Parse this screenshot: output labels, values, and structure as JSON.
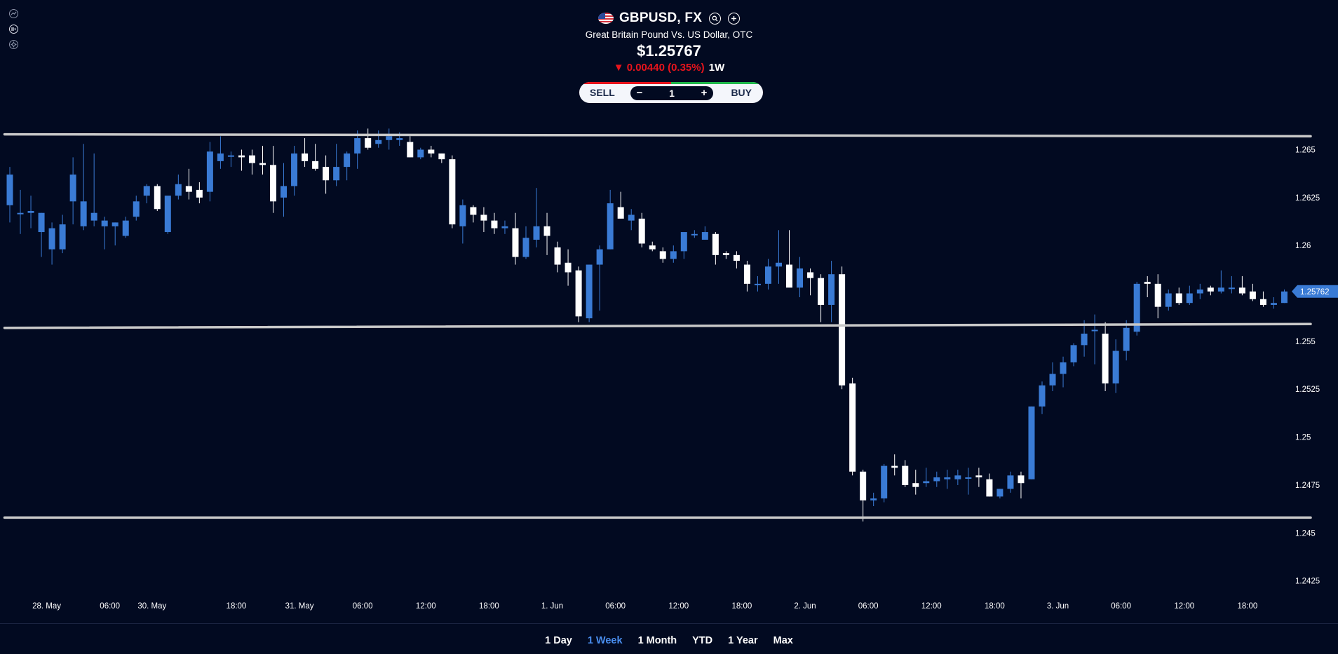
{
  "header": {
    "ticker": "GBPUSD, FX",
    "name": "Great Britain Pound Vs. US Dollar, OTC",
    "price": "$1.25767",
    "change": "▼ 0.00440 (0.35%)",
    "period": "1W"
  },
  "trade": {
    "sell_label": "SELL",
    "buy_label": "BUY",
    "quantity": "1",
    "minus": "−",
    "plus": "+"
  },
  "ranges": [
    {
      "label": "1 Day",
      "active": false
    },
    {
      "label": "1 Week",
      "active": true
    },
    {
      "label": "1 Month",
      "active": false
    },
    {
      "label": "YTD",
      "active": false
    },
    {
      "label": "1 Year",
      "active": false
    },
    {
      "label": "Max",
      "active": false
    }
  ],
  "colors": {
    "background": "#020a21",
    "up": "#3a7bd5",
    "down": "#ffffff",
    "accent": "#4a8ff0",
    "negative": "#e8141c",
    "trendline": "#c8c8c8"
  },
  "chart_data": {
    "type": "candlestick",
    "current_price_label": "1.25762",
    "ylim": [
      1.2415,
      1.2667
    ],
    "y_ticks": [
      {
        "value": 1.265,
        "label": "1.265"
      },
      {
        "value": 1.2625,
        "label": "1.2625"
      },
      {
        "value": 1.26,
        "label": "1.26"
      },
      {
        "value": 1.255,
        "label": "1.255"
      },
      {
        "value": 1.2525,
        "label": "1.2525"
      },
      {
        "value": 1.25,
        "label": "1.25"
      },
      {
        "value": 1.2475,
        "label": "1.2475"
      },
      {
        "value": 1.245,
        "label": "1.245"
      },
      {
        "value": 1.2425,
        "label": "1.2425"
      }
    ],
    "x_ticks": [
      {
        "index": 3.5,
        "label": "28. May"
      },
      {
        "index": 9.5,
        "label": "06:00"
      },
      {
        "index": 13.5,
        "label": "30. May"
      },
      {
        "index": 21.5,
        "label": "18:00"
      },
      {
        "index": 27.5,
        "label": "31. May"
      },
      {
        "index": 33.5,
        "label": "06:00"
      },
      {
        "index": 39.5,
        "label": "12:00"
      },
      {
        "index": 45.5,
        "label": "18:00"
      },
      {
        "index": 51.5,
        "label": "1. Jun"
      },
      {
        "index": 57.5,
        "label": "06:00"
      },
      {
        "index": 63.5,
        "label": "12:00"
      },
      {
        "index": 69.5,
        "label": "18:00"
      },
      {
        "index": 75.5,
        "label": "2. Jun"
      },
      {
        "index": 81.5,
        "label": "06:00"
      },
      {
        "index": 87.5,
        "label": "12:00"
      },
      {
        "index": 93.5,
        "label": "18:00"
      },
      {
        "index": 99.5,
        "label": "3. Jun"
      },
      {
        "index": 105.5,
        "label": "06:00"
      },
      {
        "index": 111.5,
        "label": "12:00"
      },
      {
        "index": 117.5,
        "label": "18:00"
      }
    ],
    "candles": [
      [
        1.2621,
        1.2641,
        1.2612,
        1.2637
      ],
      [
        1.2617,
        1.2629,
        1.2606,
        1.2617
      ],
      [
        1.2617,
        1.2626,
        1.2609,
        1.2618
      ],
      [
        1.2607,
        1.2617,
        1.2594,
        1.2617
      ],
      [
        1.2598,
        1.2612,
        1.259,
        1.2609
      ],
      [
        1.2598,
        1.2616,
        1.2596,
        1.2611
      ],
      [
        1.2623,
        1.2646,
        1.2611,
        1.2637
      ],
      [
        1.261,
        1.2653,
        1.2608,
        1.2623
      ],
      [
        1.2613,
        1.2648,
        1.261,
        1.2617
      ],
      [
        1.261,
        1.2615,
        1.2598,
        1.2613
      ],
      [
        1.261,
        1.2612,
        1.26,
        1.2612
      ],
      [
        1.2605,
        1.2615,
        1.2604,
        1.2613
      ],
      [
        1.2615,
        1.2626,
        1.2613,
        1.2623
      ],
      [
        1.2626,
        1.2632,
        1.2622,
        1.2631
      ],
      [
        1.2631,
        1.2632,
        1.2618,
        1.2619
      ],
      [
        1.2607,
        1.2625,
        1.2606,
        1.2626
      ],
      [
        1.2626,
        1.2637,
        1.2624,
        1.2632
      ],
      [
        1.2631,
        1.264,
        1.2624,
        1.2628
      ],
      [
        1.2629,
        1.2633,
        1.2622,
        1.2625
      ],
      [
        1.2628,
        1.2654,
        1.2623,
        1.2649
      ],
      [
        1.2644,
        1.2657,
        1.264,
        1.2648
      ],
      [
        1.2647,
        1.2649,
        1.2641,
        1.2647
      ],
      [
        1.2647,
        1.265,
        1.2639,
        1.2646
      ],
      [
        1.2647,
        1.265,
        1.2637,
        1.2643
      ],
      [
        1.2643,
        1.2652,
        1.2637,
        1.2642
      ],
      [
        1.2642,
        1.2652,
        1.2617,
        1.2623
      ],
      [
        1.2625,
        1.2643,
        1.2615,
        1.2631
      ],
      [
        1.2631,
        1.2652,
        1.2626,
        1.2648
      ],
      [
        1.2648,
        1.2656,
        1.2641,
        1.2644
      ],
      [
        1.2644,
        1.2653,
        1.2639,
        1.264
      ],
      [
        1.2641,
        1.2647,
        1.2627,
        1.2634
      ],
      [
        1.2634,
        1.2653,
        1.2631,
        1.2641
      ],
      [
        1.2641,
        1.2649,
        1.2634,
        1.2648
      ],
      [
        1.2648,
        1.266,
        1.264,
        1.2656
      ],
      [
        1.2656,
        1.2661,
        1.265,
        1.2651
      ],
      [
        1.2653,
        1.266,
        1.2651,
        1.2655
      ],
      [
        1.2655,
        1.2661,
        1.265,
        1.2657
      ],
      [
        1.2655,
        1.2659,
        1.2652,
        1.2656
      ],
      [
        1.2654,
        1.2657,
        1.2646,
        1.2646
      ],
      [
        1.2646,
        1.2651,
        1.2645,
        1.265
      ],
      [
        1.265,
        1.2652,
        1.2646,
        1.2648
      ],
      [
        1.2648,
        1.2648,
        1.2643,
        1.2645
      ],
      [
        1.2645,
        1.2647,
        1.2609,
        1.2611
      ],
      [
        1.261,
        1.2624,
        1.2601,
        1.2621
      ],
      [
        1.262,
        1.2621,
        1.2612,
        1.2616
      ],
      [
        1.2616,
        1.262,
        1.2607,
        1.2613
      ],
      [
        1.2613,
        1.2617,
        1.2606,
        1.2609
      ],
      [
        1.2609,
        1.2613,
        1.2606,
        1.261
      ],
      [
        1.2609,
        1.2617,
        1.259,
        1.2594
      ],
      [
        1.2594,
        1.261,
        1.2593,
        1.2604
      ],
      [
        1.2603,
        1.263,
        1.2599,
        1.261
      ],
      [
        1.261,
        1.2617,
        1.2595,
        1.2605
      ],
      [
        1.2599,
        1.2602,
        1.2586,
        1.259
      ],
      [
        1.2591,
        1.2598,
        1.2579,
        1.2586
      ],
      [
        1.2587,
        1.2589,
        1.256,
        1.2563
      ],
      [
        1.2562,
        1.259,
        1.256,
        1.259
      ],
      [
        1.259,
        1.26,
        1.2566,
        1.2598
      ],
      [
        1.2598,
        1.2629,
        1.2598,
        1.2622
      ],
      [
        1.262,
        1.2628,
        1.2614,
        1.2614
      ],
      [
        1.2613,
        1.2619,
        1.2608,
        1.2616
      ],
      [
        1.2614,
        1.2617,
        1.2599,
        1.2601
      ],
      [
        1.26,
        1.2602,
        1.2597,
        1.2598
      ],
      [
        1.2597,
        1.2599,
        1.2591,
        1.2593
      ],
      [
        1.2593,
        1.26,
        1.2591,
        1.2597
      ],
      [
        1.2597,
        1.2605,
        1.2593,
        1.2607
      ],
      [
        1.2606,
        1.2608,
        1.2604,
        1.2606
      ],
      [
        1.2603,
        1.261,
        1.2603,
        1.2607
      ],
      [
        1.2606,
        1.2607,
        1.259,
        1.2595
      ],
      [
        1.2596,
        1.2597,
        1.2593,
        1.2595
      ],
      [
        1.2595,
        1.2597,
        1.2588,
        1.2592
      ],
      [
        1.259,
        1.2592,
        1.2576,
        1.258
      ],
      [
        1.258,
        1.2584,
        1.2576,
        1.258
      ],
      [
        1.258,
        1.2593,
        1.2577,
        1.2589
      ],
      [
        1.2589,
        1.2608,
        1.258,
        1.2591
      ],
      [
        1.259,
        1.2608,
        1.258,
        1.2578
      ],
      [
        1.2578,
        1.2594,
        1.2573,
        1.2588
      ],
      [
        1.2586,
        1.2588,
        1.2574,
        1.2583
      ],
      [
        1.2583,
        1.2585,
        1.256,
        1.2569
      ],
      [
        1.2569,
        1.2592,
        1.256,
        1.2585
      ],
      [
        1.2585,
        1.2589,
        1.2525,
        1.2527
      ],
      [
        1.2528,
        1.2531,
        1.248,
        1.2482
      ],
      [
        1.2482,
        1.2483,
        1.2456,
        1.2467
      ],
      [
        1.2467,
        1.2471,
        1.2464,
        1.2468
      ],
      [
        1.2468,
        1.2486,
        1.2466,
        1.2485
      ],
      [
        1.2485,
        1.2491,
        1.248,
        1.2484
      ],
      [
        1.2485,
        1.2488,
        1.2474,
        1.2475
      ],
      [
        1.2476,
        1.2483,
        1.247,
        1.2474
      ],
      [
        1.2476,
        1.2484,
        1.2474,
        1.2477
      ],
      [
        1.2477,
        1.2482,
        1.2474,
        1.2479
      ],
      [
        1.2478,
        1.2483,
        1.2473,
        1.2479
      ],
      [
        1.2478,
        1.2483,
        1.2475,
        1.248
      ],
      [
        1.2479,
        1.2484,
        1.247,
        1.2479
      ],
      [
        1.248,
        1.2484,
        1.2474,
        1.2479
      ],
      [
        1.2478,
        1.2481,
        1.2469,
        1.2469
      ],
      [
        1.2469,
        1.2473,
        1.2468,
        1.2473
      ],
      [
        1.2473,
        1.2482,
        1.2471,
        1.248
      ],
      [
        1.248,
        1.2482,
        1.2468,
        1.2476
      ],
      [
        1.2478,
        1.2516,
        1.2478,
        1.2516
      ],
      [
        1.2516,
        1.2529,
        1.2512,
        1.2527
      ],
      [
        1.2527,
        1.2539,
        1.2524,
        1.2533
      ],
      [
        1.2533,
        1.2542,
        1.2526,
        1.2539
      ],
      [
        1.2539,
        1.2549,
        1.2537,
        1.2548
      ],
      [
        1.2548,
        1.2561,
        1.2542,
        1.2554
      ],
      [
        1.2556,
        1.2564,
        1.2538,
        1.2556
      ],
      [
        1.2554,
        1.256,
        1.2524,
        1.2528
      ],
      [
        1.2528,
        1.2551,
        1.2523,
        1.2545
      ],
      [
        1.2545,
        1.2561,
        1.254,
        1.2557
      ],
      [
        1.2555,
        1.2581,
        1.2553,
        1.258
      ],
      [
        1.2581,
        1.2584,
        1.2573,
        1.258
      ],
      [
        1.258,
        1.2585,
        1.2562,
        1.2568
      ],
      [
        1.2568,
        1.2577,
        1.2566,
        1.2575
      ],
      [
        1.2575,
        1.2578,
        1.2569,
        1.257
      ],
      [
        1.257,
        1.2579,
        1.2569,
        1.2575
      ],
      [
        1.2575,
        1.258,
        1.2572,
        1.2577
      ],
      [
        1.2578,
        1.2579,
        1.2574,
        1.2576
      ],
      [
        1.2576,
        1.2587,
        1.2575,
        1.2578
      ],
      [
        1.2578,
        1.2584,
        1.2575,
        1.2578
      ],
      [
        1.2578,
        1.2584,
        1.2574,
        1.2575
      ],
      [
        1.2576,
        1.258,
        1.2571,
        1.2572
      ],
      [
        1.2572,
        1.2576,
        1.2568,
        1.2569
      ],
      [
        1.2569,
        1.2573,
        1.2567,
        1.257
      ],
      [
        1.257,
        1.2577,
        1.257,
        1.2576
      ]
    ],
    "candle_fields": [
      "open",
      "high",
      "low",
      "close"
    ],
    "trendlines": [
      {
        "from": [
          -0.5,
          1.2658
        ],
        "to": [
          123.5,
          1.2657
        ]
      },
      {
        "from": [
          -0.5,
          1.2557
        ],
        "to": [
          123.5,
          1.2559
        ]
      },
      {
        "from": [
          -0.5,
          1.2458
        ],
        "to": [
          123.5,
          1.2458
        ]
      }
    ]
  }
}
